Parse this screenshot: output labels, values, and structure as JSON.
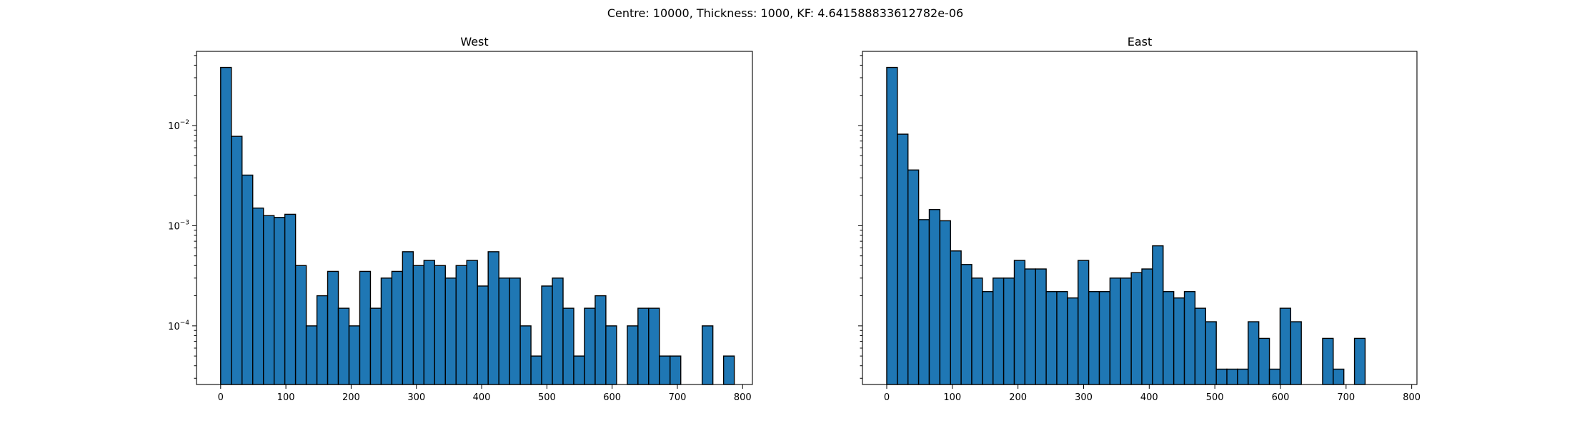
{
  "figure": {
    "suptitle": "Centre: 10000, Thickness: 1000, KF: 4.641588833612782e-06"
  },
  "chart_data": [
    {
      "type": "bar",
      "title": "West",
      "xlabel": "",
      "ylabel": "",
      "yscale": "log",
      "xlim": [
        -37,
        815
      ],
      "ylim": [
        2.6e-05,
        0.055
      ],
      "xticks": [
        0,
        100,
        200,
        300,
        400,
        500,
        600,
        700,
        800
      ],
      "yticks": [
        {
          "value": 0.0001,
          "base": "10",
          "exp": "−4"
        },
        {
          "value": 0.001,
          "base": "10",
          "exp": "−3"
        },
        {
          "value": 0.01,
          "base": "10",
          "exp": "−2"
        }
      ],
      "bin_width": 16.4,
      "bin_start": 0,
      "values": [
        0.038,
        0.0078,
        0.0032,
        0.0015,
        0.00126,
        0.00121,
        0.0013,
        0.0004,
        0.0001,
        0.0002,
        0.00035,
        0.00015,
        0.0001,
        0.00035,
        0.00015,
        0.0003,
        0.00035,
        0.00055,
        0.0004,
        0.00045,
        0.0004,
        0.0003,
        0.0004,
        0.00045,
        0.00025,
        0.00055,
        0.0003,
        0.0003,
        0.0001,
        5e-05,
        0.00025,
        0.0003,
        0.00015,
        5e-05,
        0.00015,
        0.0002,
        0.0001,
        0,
        0.0001,
        0.00015,
        0.00015,
        5e-05,
        5e-05,
        0,
        0,
        0.0001,
        0,
        5e-05
      ]
    },
    {
      "type": "bar",
      "title": "East",
      "xlabel": "",
      "ylabel": "",
      "yscale": "log",
      "xlim": [
        -37,
        808
      ],
      "ylim": [
        2.6e-05,
        0.055
      ],
      "xticks": [
        0,
        100,
        200,
        300,
        400,
        500,
        600,
        700,
        800
      ],
      "yticks": [
        {
          "value": 0.0001,
          "base": "10",
          "exp": "−4"
        },
        {
          "value": 0.001,
          "base": "10",
          "exp": "−3"
        },
        {
          "value": 0.01,
          "base": "10",
          "exp": "−2"
        }
      ],
      "bin_width": 16.2,
      "bin_start": 0,
      "values": [
        0.038,
        0.0082,
        0.0036,
        0.00115,
        0.00145,
        0.00112,
        0.00056,
        0.00041,
        0.0003,
        0.00022,
        0.0003,
        0.0003,
        0.00045,
        0.00037,
        0.00037,
        0.00022,
        0.00022,
        0.00019,
        0.00045,
        0.00022,
        0.00022,
        0.0003,
        0.0003,
        0.00034,
        0.00037,
        0.00063,
        0.00022,
        0.00019,
        0.00022,
        0.00015,
        0.00011,
        3.7e-05,
        3.7e-05,
        3.7e-05,
        0.00011,
        7.5e-05,
        3.7e-05,
        0.00015,
        0.00011,
        0,
        0,
        7.5e-05,
        3.7e-05,
        0,
        7.5e-05
      ]
    }
  ]
}
